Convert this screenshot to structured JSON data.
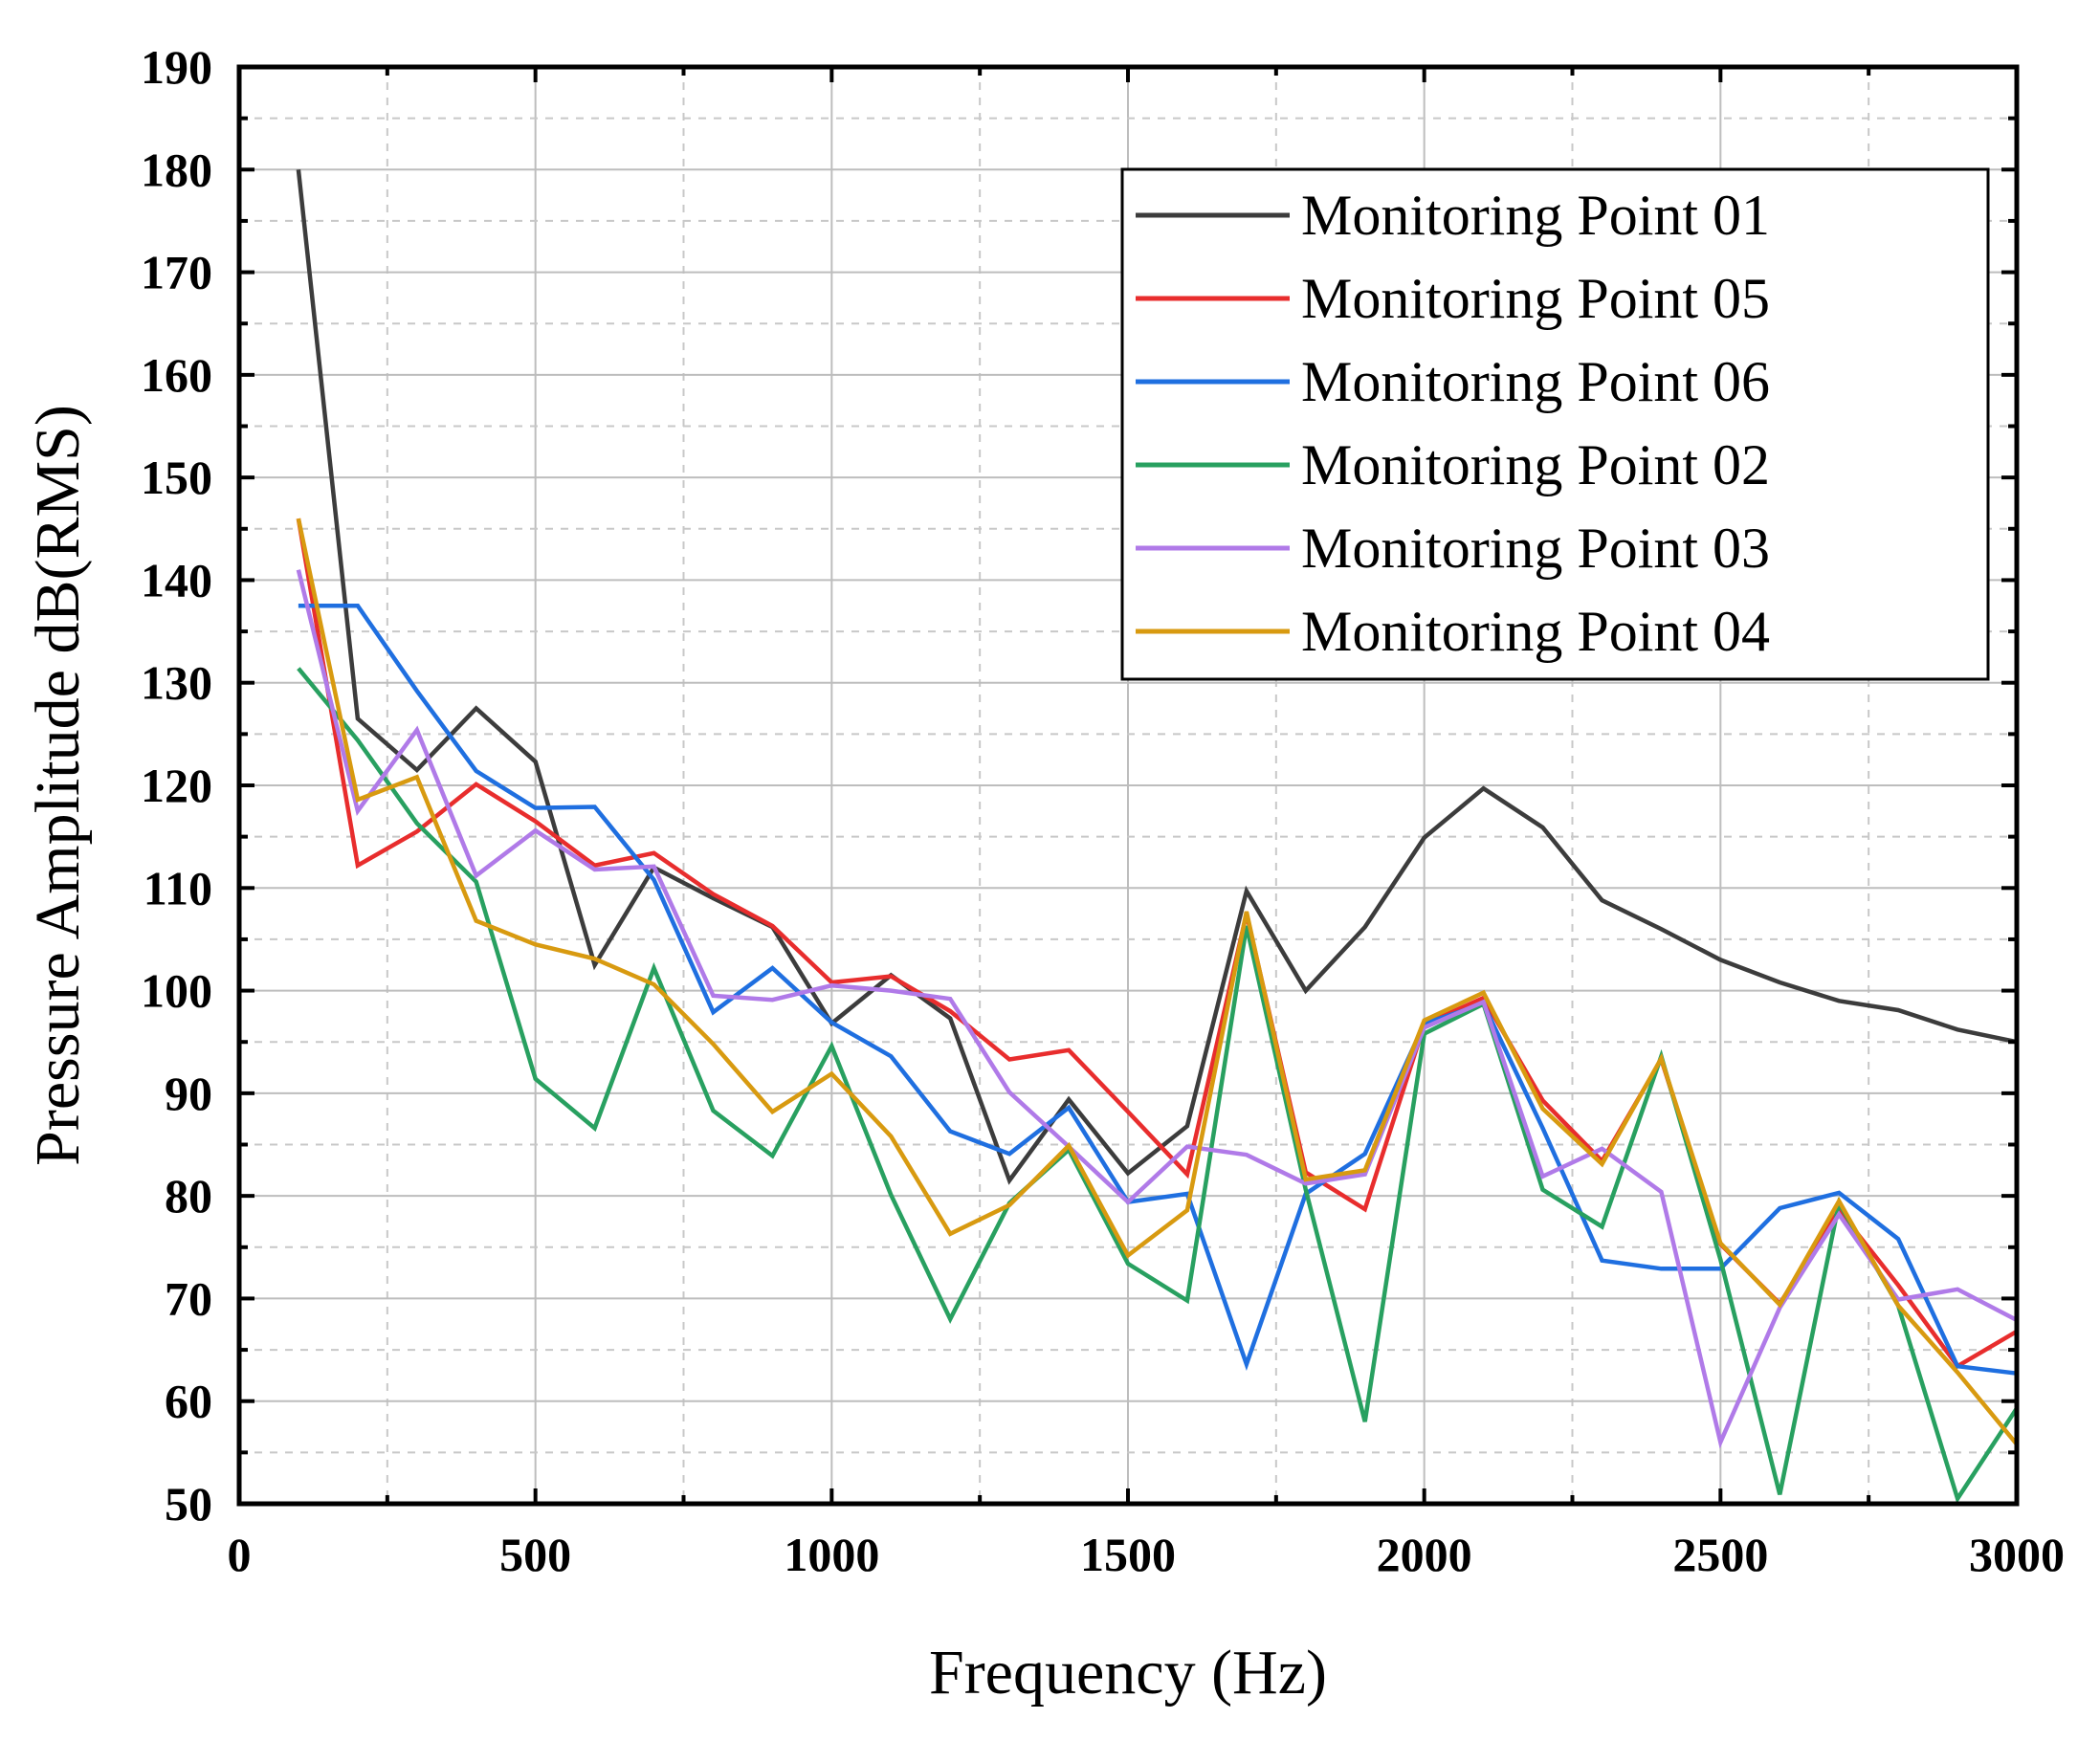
{
  "chart_data": {
    "type": "line",
    "xlabel": "Frequency (Hz)",
    "ylabel": "Pressure Amplitude dB(RMS)",
    "xlim": [
      0,
      3000
    ],
    "ylim": [
      50,
      190
    ],
    "xticks": [
      0,
      500,
      1000,
      1500,
      2000,
      2500,
      3000
    ],
    "yticks": [
      50,
      60,
      70,
      80,
      90,
      100,
      110,
      120,
      130,
      140,
      150,
      160,
      170,
      180,
      190
    ],
    "grid": true,
    "legend_position": "top-right",
    "x": [
      100,
      200,
      300,
      400,
      500,
      600,
      700,
      800,
      900,
      1000,
      1100,
      1200,
      1300,
      1400,
      1500,
      1600,
      1700,
      1800,
      1900,
      2000,
      2100,
      2200,
      2300,
      2400,
      2500,
      2600,
      2700,
      2800,
      2900,
      3000
    ],
    "series": [
      {
        "name": "Monitoring Point 01",
        "color": "#3c3c3c",
        "values": [
          180,
          126.5,
          121.5,
          127.5,
          122.3,
          102.5,
          112,
          109,
          106.2,
          96.8,
          101.5,
          97.3,
          81.5,
          89.4,
          82.2,
          86.8,
          109.7,
          100,
          106.2,
          114.9,
          119.7,
          115.9,
          108.8,
          106,
          103,
          100.8,
          99,
          98.1,
          96.2,
          95
        ]
      },
      {
        "name": "Monitoring Point 05",
        "color": "#e82d2d",
        "values": [
          146,
          112.2,
          115.5,
          120.1,
          116.5,
          112.2,
          113.4,
          109.4,
          106.3,
          100.8,
          101.4,
          98,
          93.3,
          94.2,
          88.2,
          82.1,
          107.5,
          82.3,
          78.7,
          96.7,
          99.3,
          89.3,
          83.4,
          93.3,
          75.3,
          69.5,
          78.6,
          71.3,
          63.4,
          66.8
        ]
      },
      {
        "name": "Monitoring Point 06",
        "color": "#1f6fe0",
        "values": [
          137.5,
          137.5,
          129.2,
          121.4,
          117.8,
          117.9,
          110.8,
          97.9,
          102.2,
          96.9,
          93.6,
          86.3,
          84.1,
          88.6,
          79.4,
          80.2,
          63.6,
          80.2,
          84.1,
          96.8,
          98.7,
          86.6,
          73.7,
          72.9,
          72.9,
          78.8,
          80.3,
          75.8,
          63.4,
          62.7
        ]
      },
      {
        "name": "Monitoring Point 02",
        "color": "#28a060",
        "values": [
          131.4,
          124.4,
          116.3,
          110.6,
          91.4,
          86.6,
          102.2,
          88.3,
          83.9,
          94.6,
          80.1,
          68,
          79.3,
          84.5,
          73.4,
          69.8,
          106.3,
          80.6,
          58,
          95.8,
          98.7,
          80.6,
          77,
          93.6,
          73.8,
          50.9,
          79.3,
          69.3,
          50.5,
          59.3
        ]
      },
      {
        "name": "Monitoring Point 03",
        "color": "#b07ae8",
        "values": [
          141,
          117.5,
          125.4,
          111.2,
          115.6,
          111.8,
          112.1,
          99.5,
          99.1,
          100.5,
          100,
          99.2,
          90.1,
          84.8,
          79.4,
          84.8,
          84,
          81.2,
          82.1,
          96.4,
          98.9,
          81.9,
          84.6,
          80.4,
          56,
          69.1,
          78.2,
          69.9,
          70.9,
          67.9
        ]
      },
      {
        "name": "Monitoring Point 04",
        "color": "#d89a10",
        "values": [
          146,
          118.6,
          120.8,
          106.8,
          104.5,
          103.1,
          100.6,
          94.8,
          88.2,
          91.9,
          85.8,
          76.3,
          79.1,
          84.9,
          74.2,
          78.6,
          107.7,
          81.6,
          82.5,
          97.1,
          99.8,
          88.5,
          83.1,
          93.4,
          75.4,
          69.4,
          79.5,
          69.3,
          62.8,
          55.8
        ]
      }
    ]
  }
}
